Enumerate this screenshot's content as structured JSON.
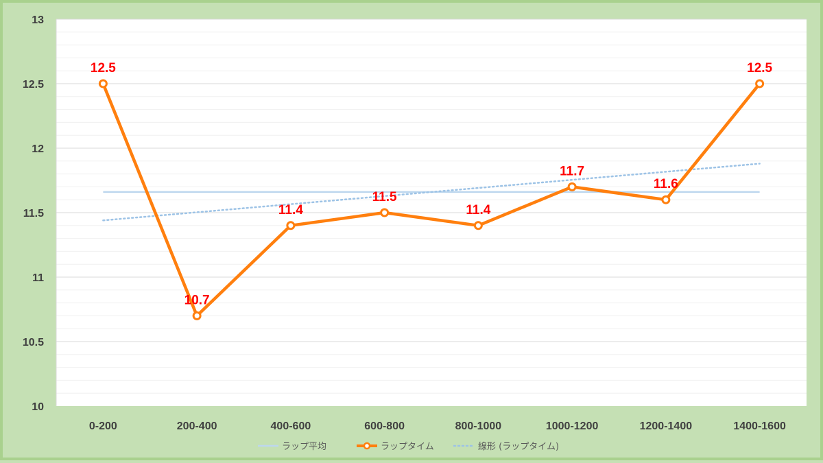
{
  "chart_data": {
    "type": "line",
    "categories": [
      "0-200",
      "200-400",
      "400-600",
      "600-800",
      "800-1000",
      "1000-1200",
      "1200-1400",
      "1400-1600"
    ],
    "ylim": [
      10,
      13
    ],
    "y_major_ticks": [
      "10",
      "10.5",
      "11",
      "11.5",
      "12",
      "12.5",
      "13"
    ],
    "y_minor_step": 0.1,
    "grid": true,
    "legend_position": "bottom",
    "series": [
      {
        "name": "ラップ平均",
        "color": "#bdd7ee",
        "values": [
          11.66,
          11.66,
          11.66,
          11.66,
          11.66,
          11.66,
          11.66,
          11.66
        ]
      },
      {
        "name": "ラップタイム",
        "color": "#ff7f0e",
        "values": [
          12.5,
          10.7,
          11.4,
          11.5,
          11.4,
          11.7,
          11.6,
          12.5
        ],
        "data_labels": [
          "12.5",
          "10.7",
          "11.4",
          "11.5",
          "11.4",
          "11.7",
          "11.6",
          "12.5"
        ],
        "data_label_color": "#ff0000"
      },
      {
        "name": "線形 (ラップタイム)",
        "color": "#9dc3e6",
        "style": "dotted",
        "values": [
          11.44,
          11.5,
          11.57,
          11.63,
          11.69,
          11.75,
          11.82,
          11.88
        ]
      }
    ]
  }
}
